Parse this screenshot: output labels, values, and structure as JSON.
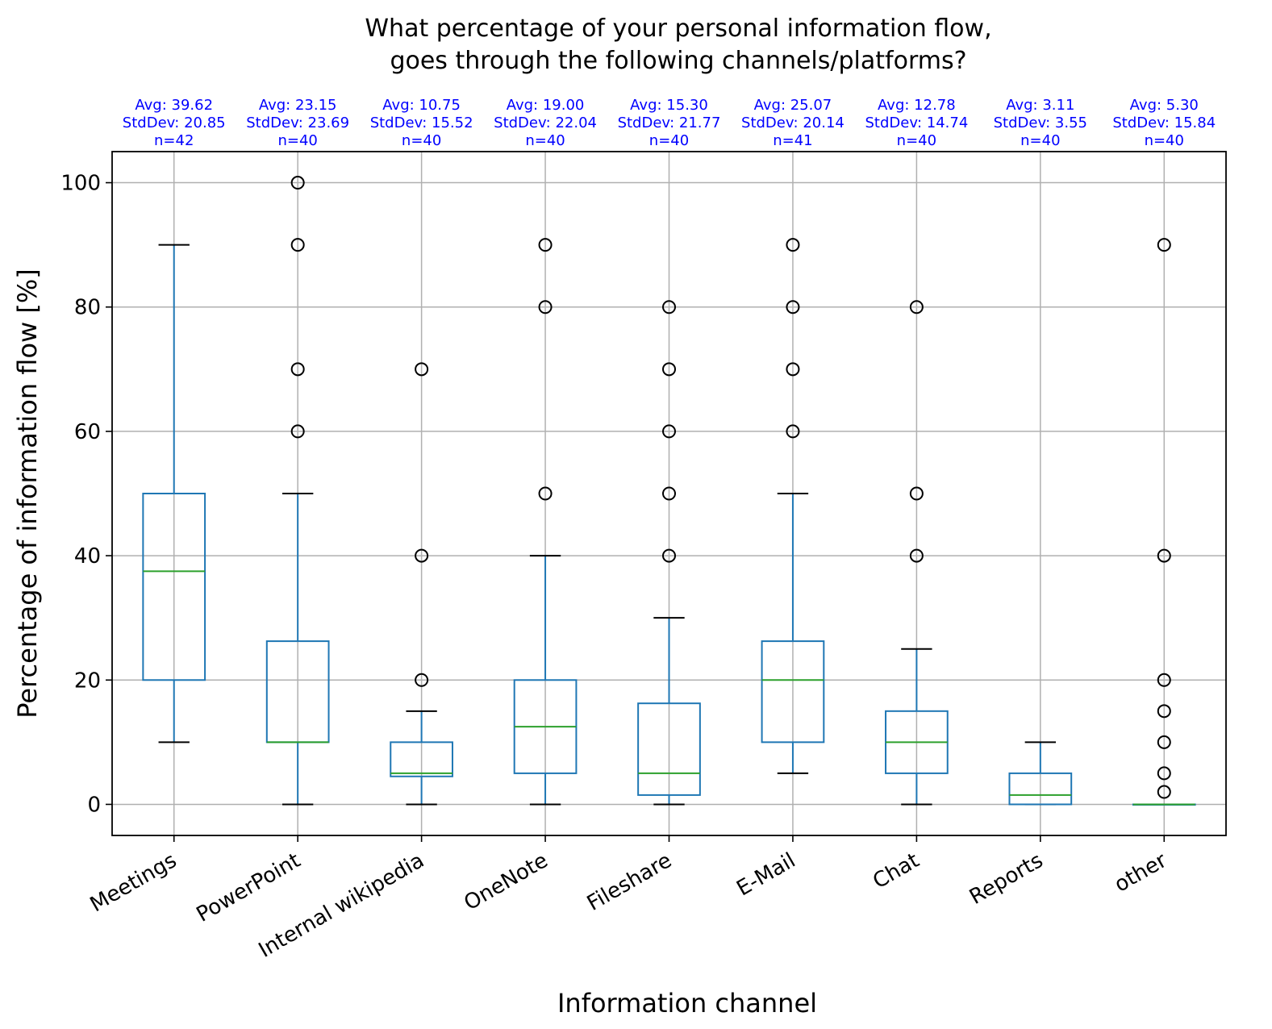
{
  "chart_data": {
    "type": "boxplot",
    "title": [
      "What percentage of your personal information flow,",
      "goes through the following channels/platforms?"
    ],
    "xlabel": "Information channel",
    "ylabel": "Percentage of information flow [%]",
    "ylim": [
      -5,
      105
    ],
    "yticks": [
      0,
      20,
      40,
      60,
      80,
      100
    ],
    "grid": true,
    "colors": {
      "box": "#1f77b4",
      "median": "#2ca02c",
      "stats_text": "#0000ff",
      "grid": "#b0b0b0",
      "outlier": "#000000"
    },
    "categories": [
      {
        "name": "Meetings",
        "q1": 20,
        "median": 37.5,
        "q3": 50,
        "whisker_low": 10,
        "whisker_high": 90,
        "outliers": [],
        "stats": [
          "Avg: 39.62",
          "StdDev: 20.85",
          "n=42"
        ]
      },
      {
        "name": "PowerPoint",
        "q1": 10,
        "median": 10,
        "q3": 26.25,
        "whisker_low": 0,
        "whisker_high": 50,
        "outliers": [
          60,
          70,
          90,
          100
        ],
        "stats": [
          "Avg: 23.15",
          "StdDev: 23.69",
          "n=40"
        ]
      },
      {
        "name": "Internal wikipedia",
        "q1": 4.5,
        "median": 5,
        "q3": 10,
        "whisker_low": 0,
        "whisker_high": 15,
        "outliers": [
          20,
          40,
          70
        ],
        "stats": [
          "Avg: 10.75",
          "StdDev: 15.52",
          "n=40"
        ]
      },
      {
        "name": "OneNote",
        "q1": 5,
        "median": 12.5,
        "q3": 20,
        "whisker_low": 0,
        "whisker_high": 40,
        "outliers": [
          50,
          80,
          90
        ],
        "stats": [
          "Avg: 19.00",
          "StdDev: 22.04",
          "n=40"
        ]
      },
      {
        "name": "Fileshare",
        "q1": 1.5,
        "median": 5,
        "q3": 16.25,
        "whisker_low": 0,
        "whisker_high": 30,
        "outliers": [
          40,
          50,
          60,
          70,
          80
        ],
        "stats": [
          "Avg: 15.30",
          "StdDev: 21.77",
          "n=40"
        ]
      },
      {
        "name": "E-Mail",
        "q1": 10,
        "median": 20,
        "q3": 26.25,
        "whisker_low": 5,
        "whisker_high": 50,
        "outliers": [
          60,
          70,
          80,
          90
        ],
        "stats": [
          "Avg: 25.07",
          "StdDev: 20.14",
          "n=41"
        ]
      },
      {
        "name": "Chat",
        "q1": 5,
        "median": 10,
        "q3": 15,
        "whisker_low": 0,
        "whisker_high": 25,
        "outliers": [
          40,
          50,
          80
        ],
        "stats": [
          "Avg: 12.78",
          "StdDev: 14.74",
          "n=40"
        ]
      },
      {
        "name": "Reports",
        "q1": 0,
        "median": 1.5,
        "q3": 5,
        "whisker_low": 0,
        "whisker_high": 10,
        "outliers": [],
        "stats": [
          "Avg: 3.11",
          "StdDev: 3.55",
          "n=40"
        ]
      },
      {
        "name": "other",
        "q1": 0,
        "median": 0,
        "q3": 0,
        "whisker_low": 0,
        "whisker_high": 0,
        "outliers": [
          2,
          5,
          10,
          15,
          20,
          40,
          90
        ],
        "stats": [
          "Avg: 5.30",
          "StdDev: 15.84",
          "n=40"
        ]
      }
    ]
  }
}
